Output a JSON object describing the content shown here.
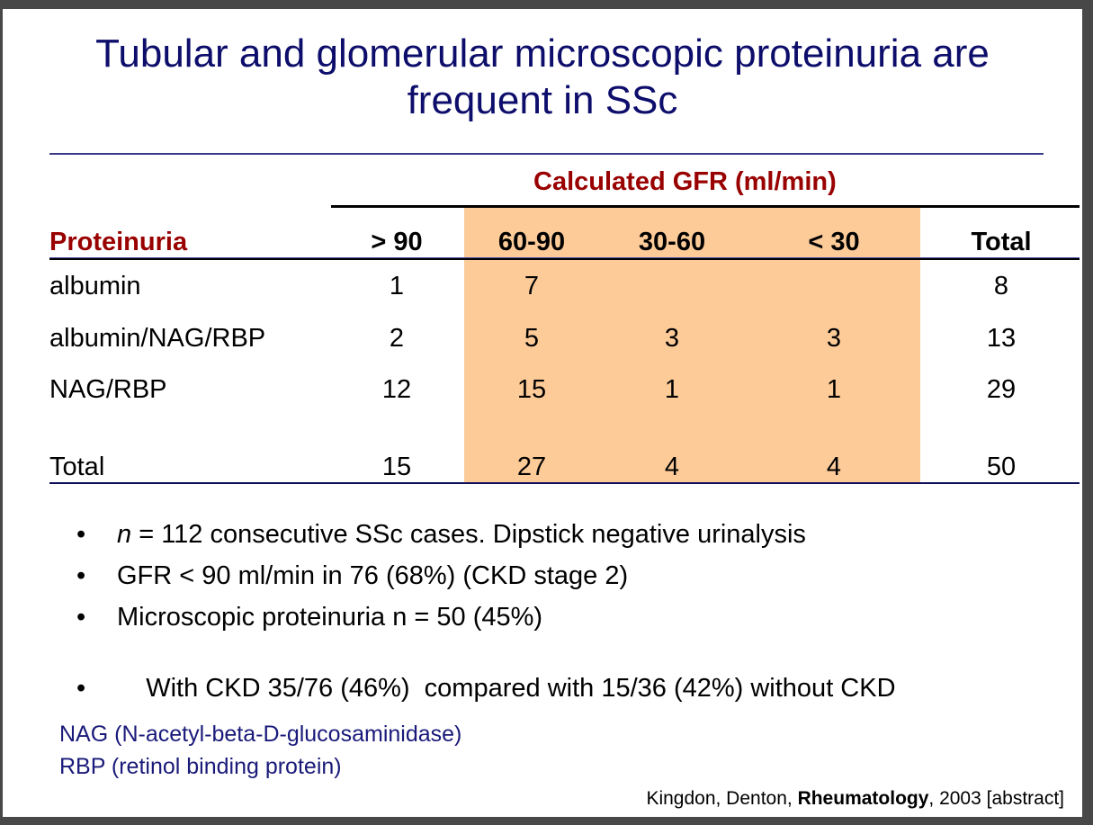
{
  "title": "Tubular and glomerular microscopic proteinuria are frequent in SSc",
  "title_line1": "Tubular and glomerular microscopic proteinuria are",
  "title_line2": "frequent in SSc",
  "table": {
    "group_header": "Calculated GFR (ml/min)",
    "row_header": "Proteinuria",
    "columns": [
      "> 90",
      "60-90",
      "30-60",
      "< 30",
      "Total"
    ],
    "highlight_color": "#fdcb98",
    "rows": [
      {
        "label": "albumin",
        "values": [
          "1",
          "7",
          "",
          "",
          "8"
        ]
      },
      {
        "label": "albumin/NAG/RBP",
        "values": [
          "2",
          "5",
          "3",
          "3",
          "13"
        ]
      },
      {
        "label": "NAG/RBP",
        "values": [
          "12",
          "15",
          "1",
          "1",
          "29"
        ]
      },
      {
        "label": "Total",
        "values": [
          "15",
          "27",
          "4",
          "4",
          "50"
        ]
      }
    ]
  },
  "bullets": [
    {
      "italic": "n",
      "text": " = 112 consecutive SSc cases.  Dipstick negative urinalysis"
    },
    {
      "italic": "",
      "text": "GFR < 90 ml/min in 76 (68%) (CKD stage 2)"
    },
    {
      "italic": "",
      "text": "Microscopic proteinuria n = 50 (45%)"
    },
    {
      "italic": "",
      "text": "With CKD 35/76 (46%)  compared with 15/36 (42%) without CKD"
    }
  ],
  "bullet_symbol": "•",
  "notes": [
    "NAG (N-acetyl-beta-D-glucosaminidase)",
    "RBP (retinol binding protein)"
  ],
  "citation": {
    "authors": "Kingdon, Denton, ",
    "journal": "Rheumatology",
    "rest": ", 2003 [abstract]"
  }
}
